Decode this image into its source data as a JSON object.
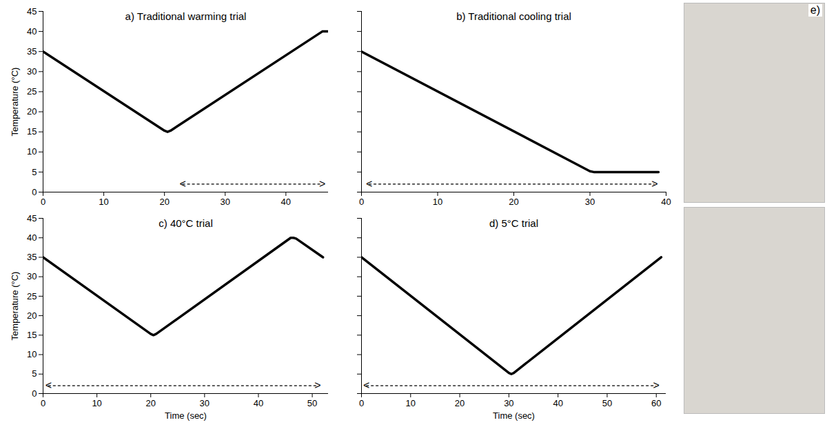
{
  "chart_data": [
    {
      "type": "line",
      "title": "a) Traditional warming trial",
      "ylabel": "Temperature (°C)",
      "x": [
        0,
        20,
        20.5,
        21,
        46,
        46.5,
        47
      ],
      "values": [
        35,
        15.3,
        15,
        15.3,
        40,
        40,
        40
      ],
      "color": "#000000",
      "xlim": [
        0,
        47
      ],
      "xticks": [
        0,
        10,
        20,
        30,
        40
      ],
      "ylim": [
        0,
        45
      ],
      "yticks": [
        0,
        5,
        10,
        15,
        20,
        25,
        30,
        35,
        40,
        45
      ],
      "span": {
        "x": [
          23,
          46
        ],
        "y": 2,
        "labels": [
          "<",
          ">"
        ]
      }
    },
    {
      "type": "line",
      "title": "b) Traditional cooling trial",
      "tick_labels": "x",
      "x": [
        0,
        30,
        30.5,
        39
      ],
      "values": [
        35,
        5.2,
        5,
        5
      ],
      "color": "#000000",
      "xlim": [
        0,
        40
      ],
      "xticks": [
        0,
        10,
        20,
        30,
        40
      ],
      "ylim": [
        0,
        45
      ],
      "yticks": [
        0,
        5,
        10,
        15,
        20,
        25,
        30,
        35,
        40,
        45
      ],
      "span": {
        "x": [
          1,
          38.5
        ],
        "y": 2,
        "labels": [
          "<",
          ">"
        ]
      }
    },
    {
      "type": "line",
      "title": "c) 40°C trial",
      "ylabel": "Temperature (°C)",
      "xlabel": "Time (sec)",
      "x": [
        0,
        20,
        20.5,
        21,
        46,
        46.5,
        47,
        52
      ],
      "values": [
        35,
        15.3,
        15,
        15.3,
        40,
        40,
        39.8,
        35
      ],
      "color": "#000000",
      "xlim": [
        0,
        53
      ],
      "xticks": [
        0,
        10,
        20,
        30,
        40,
        50
      ],
      "ylim": [
        0,
        45
      ],
      "yticks": [
        0,
        5,
        10,
        15,
        20,
        25,
        30,
        35,
        40,
        45
      ],
      "span": {
        "x": [
          1,
          51
        ],
        "y": 2,
        "labels": [
          "<",
          ">"
        ]
      }
    },
    {
      "type": "line",
      "title": "d) 5°C trial",
      "xlabel": "Time (sec)",
      "tick_labels": "x",
      "x": [
        0,
        30,
        30.5,
        31,
        61
      ],
      "values": [
        35,
        5.3,
        5,
        5.3,
        35
      ],
      "color": "#000000",
      "xlim": [
        0,
        62
      ],
      "xticks": [
        0,
        10,
        20,
        30,
        40,
        50,
        60
      ],
      "ylim": [
        0,
        45
      ],
      "yticks": [
        0,
        5,
        10,
        15,
        20,
        25,
        30,
        35,
        40,
        45
      ],
      "span": {
        "x": [
          1,
          60
        ],
        "y": 2,
        "labels": [
          "<",
          ">"
        ]
      }
    }
  ],
  "image_panel": {
    "label": "e)"
  }
}
